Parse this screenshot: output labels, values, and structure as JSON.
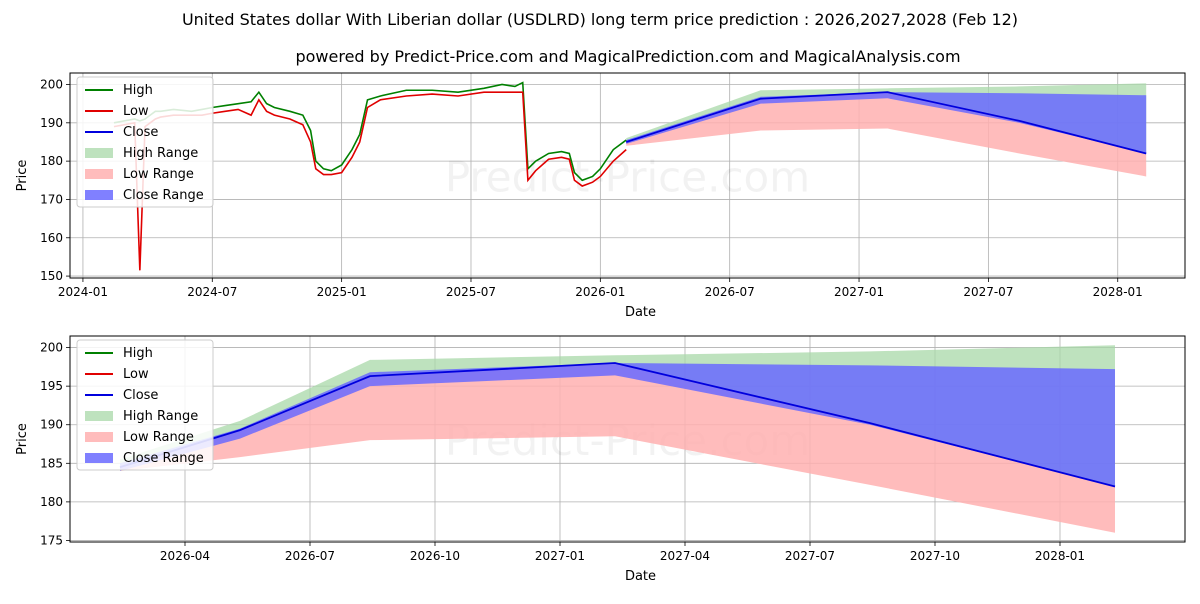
{
  "page": {
    "title": "United States dollar With Liberian dollar (USDLRD) long term price prediction : 2026,2027,2028 (Feb 12)",
    "subtitle": "powered by Predict-Price.com and MagicalPrediction.com and MagicalAnalysis.com",
    "watermark": "Predict-Price.com"
  },
  "colors": {
    "high": "#008000",
    "low": "#e00000",
    "close": "#0000dd",
    "high_range": "#a8d8a8",
    "low_range": "#ffb0b0",
    "close_range": "#6a6aff"
  },
  "chart_data": [
    {
      "type": "line",
      "id": "top",
      "xlabel": "Date",
      "ylabel": "Price",
      "xlim": [
        2023.95,
        2028.26
      ],
      "ylim": [
        149.5,
        203
      ],
      "grid": true,
      "legend_position": "top-left",
      "xticks": [
        {
          "v": 2024.0,
          "label": "2024-01"
        },
        {
          "v": 2024.5,
          "label": "2024-07"
        },
        {
          "v": 2025.0,
          "label": "2025-01"
        },
        {
          "v": 2025.5,
          "label": "2025-07"
        },
        {
          "v": 2026.0,
          "label": "2026-01"
        },
        {
          "v": 2026.5,
          "label": "2026-07"
        },
        {
          "v": 2027.0,
          "label": "2027-01"
        },
        {
          "v": 2027.5,
          "label": "2027-07"
        },
        {
          "v": 2028.0,
          "label": "2028-01"
        }
      ],
      "yticks": [
        150,
        160,
        170,
        180,
        190,
        200
      ],
      "legend": [
        "High",
        "Low",
        "Close",
        "High Range",
        "Low Range",
        "Close Range"
      ],
      "history_x": [
        2024.12,
        2024.2,
        2024.22,
        2024.24,
        2024.26,
        2024.28,
        2024.3,
        2024.35,
        2024.42,
        2024.46,
        2024.5,
        2024.55,
        2024.6,
        2024.65,
        2024.68,
        2024.71,
        2024.74,
        2024.8,
        2024.85,
        2024.88,
        2024.9,
        2024.93,
        2024.96,
        2025.0,
        2025.04,
        2025.07,
        2025.1,
        2025.15,
        2025.25,
        2025.35,
        2025.45,
        2025.55,
        2025.62,
        2025.67,
        2025.7,
        2025.72,
        2025.75,
        2025.8,
        2025.85,
        2025.88,
        2025.9,
        2025.93,
        2025.97,
        2026.0,
        2026.05,
        2026.1
      ],
      "history_high": [
        190,
        191,
        190.5,
        191,
        192,
        193,
        193,
        193.5,
        193,
        193.5,
        194,
        194.5,
        195,
        195.5,
        198,
        195,
        194,
        193,
        192,
        188,
        180,
        178,
        177.5,
        179,
        183,
        187,
        196,
        197,
        198.5,
        198.5,
        198,
        199,
        200,
        199.5,
        200.5,
        178,
        180,
        182,
        182.5,
        182,
        177,
        175,
        176,
        178,
        183,
        185.5
      ],
      "history_low": [
        189,
        190,
        151.5,
        189,
        190,
        191,
        191.5,
        192,
        192,
        192,
        192.5,
        193,
        193.5,
        192,
        196,
        193,
        192,
        191,
        189.5,
        185,
        178,
        176.5,
        176.5,
        177,
        181,
        185,
        194,
        196,
        197,
        197.5,
        197,
        198,
        198,
        198,
        198,
        175,
        177.5,
        180.5,
        181,
        180.5,
        175,
        173.5,
        174.5,
        176,
        180,
        183
      ],
      "forecast_x": [
        2026.1,
        2026.62,
        2027.11,
        2027.62,
        2028.11
      ],
      "close": [
        185,
        196.3,
        198,
        190.5,
        182
      ],
      "high_range_top": [
        186,
        198.5,
        199,
        199.5,
        200.3
      ],
      "close_range_top": [
        185.5,
        196.8,
        198,
        197.7,
        197.2
      ],
      "close_range_bottom": [
        184.5,
        195,
        196.4,
        190,
        182
      ],
      "low_range_bottom": [
        184,
        188,
        188.5,
        182,
        176
      ]
    },
    {
      "type": "line",
      "id": "bottom",
      "xlabel": "Date",
      "ylabel": "Price",
      "xlim": [
        2026.02,
        2028.25
      ],
      "ylim": [
        174.8,
        201.5
      ],
      "grid": true,
      "legend_position": "top-left",
      "xticks": [
        {
          "v": 2026.25,
          "label": "2026-04"
        },
        {
          "v": 2026.5,
          "label": "2026-07"
        },
        {
          "v": 2026.75,
          "label": "2026-10"
        },
        {
          "v": 2027.0,
          "label": "2027-01"
        },
        {
          "v": 2027.25,
          "label": "2027-04"
        },
        {
          "v": 2027.5,
          "label": "2027-07"
        },
        {
          "v": 2027.75,
          "label": "2027-10"
        },
        {
          "v": 2028.0,
          "label": "2028-01"
        }
      ],
      "yticks": [
        175,
        180,
        185,
        190,
        195,
        200
      ],
      "legend": [
        "High",
        "Low",
        "Close",
        "High Range",
        "Low Range",
        "Close Range"
      ],
      "forecast_x": [
        2026.12,
        2026.36,
        2026.62,
        2027.11,
        2027.62,
        2028.11
      ],
      "close": [
        184.5,
        189.3,
        196.3,
        198,
        190.2,
        182
      ],
      "high_range_top": [
        185.5,
        190.5,
        198.4,
        199,
        199.5,
        200.3
      ],
      "close_range_top": [
        185,
        189.5,
        196.8,
        198,
        197.7,
        197.2
      ],
      "close_range_bottom": [
        184,
        188.2,
        195,
        196.4,
        190,
        182
      ],
      "low_range_bottom": [
        184,
        185.8,
        188,
        188.5,
        182.2,
        176
      ]
    }
  ]
}
